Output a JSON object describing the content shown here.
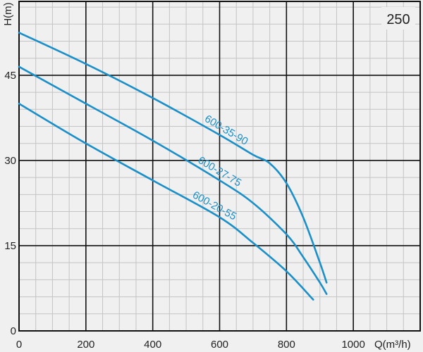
{
  "chart_data": {
    "type": "line",
    "title": "",
    "badge": "250",
    "xlabel": "Q(m³/h)",
    "ylabel": "H(m)",
    "xlim": [
      0,
      1200
    ],
    "ylim": [
      0,
      58
    ],
    "x_ticks": [
      0,
      200,
      400,
      600,
      800,
      1000
    ],
    "y_ticks": [
      0,
      15,
      30,
      45
    ],
    "grid": true,
    "line_color": "#1a8fc9",
    "series": [
      {
        "name": "600-35-90",
        "x": [
          0,
          200,
          400,
          600,
          700,
          750,
          800,
          850,
          900,
          920
        ],
        "y": [
          52.5,
          47,
          41,
          34.5,
          31,
          29.5,
          26,
          20,
          12,
          8.5
        ]
      },
      {
        "name": "600-27-75",
        "x": [
          0,
          200,
          400,
          600,
          700,
          800,
          850,
          900,
          920
        ],
        "y": [
          46.5,
          40,
          33.5,
          26.5,
          22.5,
          17,
          13,
          8.5,
          6.5
        ]
      },
      {
        "name": "600-20-55",
        "x": [
          0,
          200,
          400,
          600,
          700,
          800,
          880
        ],
        "y": [
          40,
          33,
          26.5,
          20,
          15.5,
          10.5,
          5.5
        ]
      }
    ]
  }
}
